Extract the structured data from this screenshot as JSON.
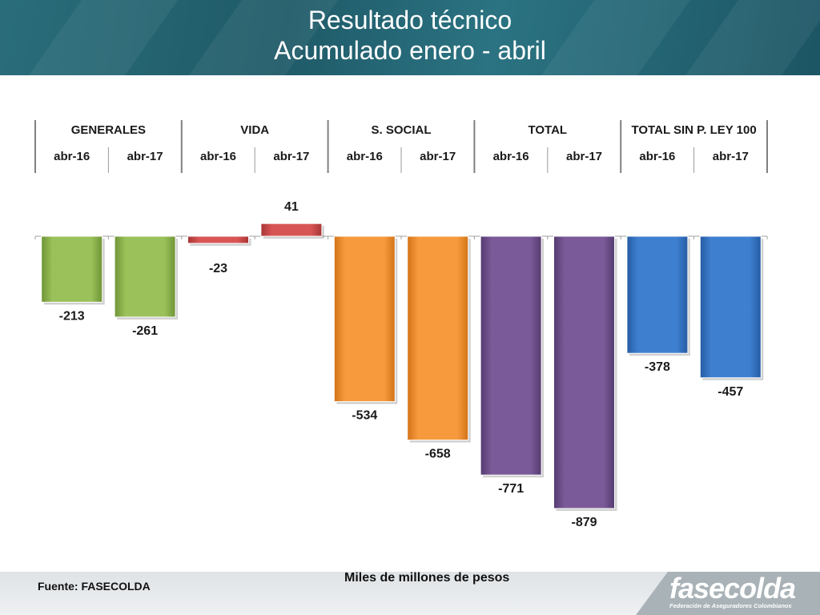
{
  "title": {
    "line1": "Resultado técnico",
    "line2": "Acumulado  enero - abril"
  },
  "source": "Fuente: FASECOLDA",
  "unit_label": "Miles de millones de pesos",
  "logo": {
    "name": "fasecolda",
    "tagline": "Federación de Aseguradores Colombianos"
  },
  "chart_data": {
    "type": "bar",
    "title": "",
    "xlabel": "",
    "ylabel": "",
    "groups": [
      {
        "name": "GENERALES",
        "color": "#9bc15a",
        "color_dark": "#6f9436",
        "bars": [
          {
            "label": "abr-16",
            "value": -213
          },
          {
            "label": "abr-17",
            "value": -261
          }
        ]
      },
      {
        "name": "VIDA",
        "color": "#d85555",
        "color_dark": "#a83434",
        "bars": [
          {
            "label": "abr-16",
            "value": -23
          },
          {
            "label": "abr-17",
            "value": 41
          }
        ]
      },
      {
        "name": "S. SOCIAL",
        "color": "#f79a3e",
        "color_dark": "#d37318",
        "bars": [
          {
            "label": "abr-16",
            "value": -534
          },
          {
            "label": "abr-17",
            "value": -658
          }
        ]
      },
      {
        "name": "TOTAL",
        "color": "#7a5a98",
        "color_dark": "#553b70",
        "bars": [
          {
            "label": "abr-16",
            "value": -771
          },
          {
            "label": "abr-17",
            "value": -879
          }
        ]
      },
      {
        "name": "TOTAL SIN P. LEY 100",
        "color": "#3e7fcf",
        "color_dark": "#255ca3",
        "bars": [
          {
            "label": "abr-16",
            "value": -378
          },
          {
            "label": "abr-17",
            "value": -457
          }
        ]
      }
    ],
    "ylim": [
      -879,
      41
    ],
    "grid": false,
    "legend": "none"
  }
}
